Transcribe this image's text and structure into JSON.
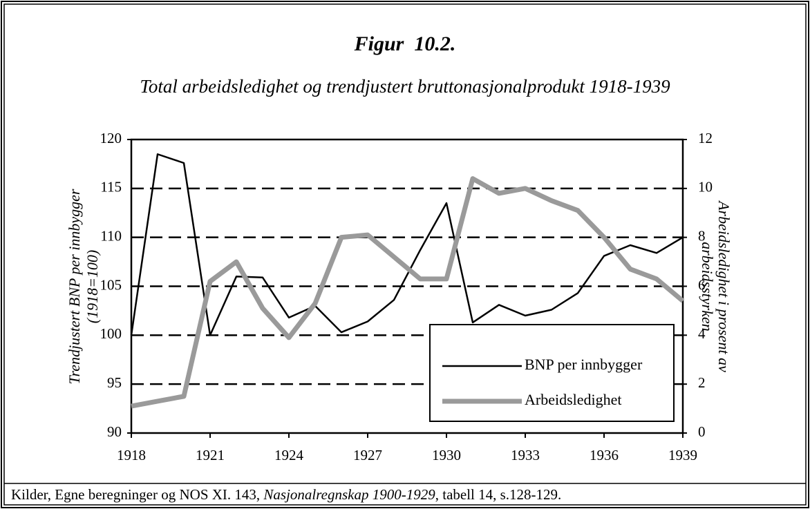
{
  "chart_data": {
    "type": "line",
    "title": "Figur  10.2.",
    "subtitle": "Total arbeidsledighet og trendjustert bruttonasjonalprodukt 1918-1939",
    "ylabel": [
      "Trendjustert BNP per innbygger",
      "(1918=100)"
    ],
    "y2label": [
      "Arbeidsledighet i prosent av",
      "arbeidsstyrken"
    ],
    "x": [
      1918,
      1919,
      1920,
      1921,
      1922,
      1923,
      1924,
      1925,
      1926,
      1927,
      1928,
      1929,
      1930,
      1931,
      1932,
      1933,
      1934,
      1935,
      1936,
      1937,
      1938,
      1939
    ],
    "xlim": [
      1918,
      1939
    ],
    "xticks": [
      1918,
      1921,
      1924,
      1927,
      1930,
      1933,
      1936,
      1939
    ],
    "ylim": [
      90,
      120
    ],
    "yticks": [
      90,
      95,
      100,
      105,
      110,
      115,
      120
    ],
    "y2lim": [
      0,
      12
    ],
    "y2ticks": [
      0,
      2,
      4,
      6,
      8,
      10,
      12
    ],
    "grid": true,
    "legend": "lower right",
    "series": [
      {
        "name": "BNP per innbygger",
        "color": "#000000",
        "values": [
          100,
          118.5,
          117.6,
          100,
          106,
          105.9,
          101.8,
          103,
          100.3,
          101.4,
          103.6,
          108.7,
          113.5,
          101.3,
          103.1,
          102,
          102.6,
          104.3,
          108.1,
          109.2,
          108.4,
          110
        ]
      },
      {
        "name": "Arbeidsledighet",
        "color": "#9a9a9a",
        "axis": "y2",
        "values": [
          1.1,
          1.3,
          1.5,
          6.2,
          7.0,
          5.1,
          3.9,
          5.3,
          8.0,
          8.1,
          7.2,
          6.3,
          6.3,
          10.4,
          9.8,
          10.0,
          9.5,
          9.1,
          8.0,
          6.7,
          6.3,
          5.4
        ]
      }
    ],
    "source": {
      "before": "Kilder, Egne beregninger og NOS XI. 143, ",
      "italic": "Nasjonalregnskap 1900-1929",
      "after": ", tabell 14, s.128-129."
    }
  }
}
